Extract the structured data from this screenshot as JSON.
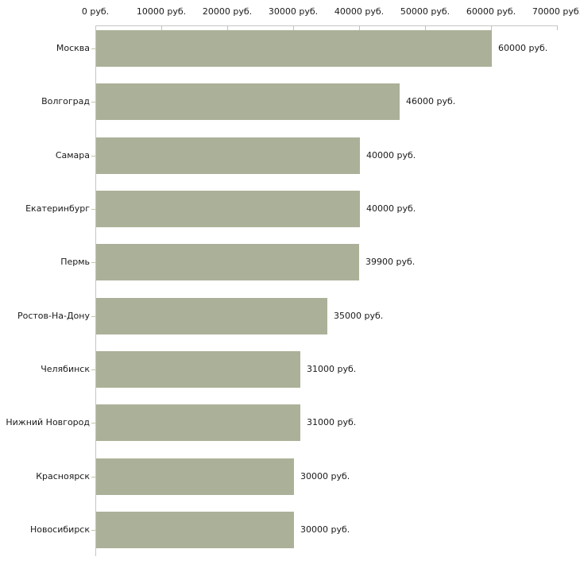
{
  "chart_data": {
    "type": "bar",
    "orientation": "horizontal",
    "title": "",
    "xlabel": "",
    "ylabel": "",
    "unit": "руб.",
    "categories": [
      "Москва",
      "Волгоград",
      "Самара",
      "Екатеринбург",
      "Пермь",
      "Ростов-На-Дону",
      "Челябинск",
      "Нижний Новгород",
      "Красноярск",
      "Новосибирск"
    ],
    "values": [
      60000,
      46000,
      40000,
      40000,
      39900,
      35000,
      31000,
      31000,
      30000,
      30000
    ],
    "value_labels": [
      "60000 руб.",
      "46000 руб.",
      "40000 руб.",
      "40000 руб.",
      "39900 руб.",
      "35000 руб.",
      "31000 руб.",
      "31000 руб.",
      "30000 руб.",
      "30000 руб."
    ],
    "x_tick_labels": [
      "0 руб.",
      "10000 руб.",
      "20000 руб.",
      "30000 руб.",
      "40000 руб.",
      "50000 руб.",
      "60000 руб.",
      "70000 руб."
    ],
    "x_tick_values": [
      0,
      10000,
      20000,
      30000,
      40000,
      50000,
      60000,
      70000
    ],
    "xlim": [
      0,
      70000
    ],
    "grid": false,
    "legend": "none",
    "bar_color": "#abb198",
    "axis_color": "#c6c6c6",
    "tick_color": "#c3c6a3",
    "text_color": "#1a1a1a",
    "background": "#ffffff"
  }
}
